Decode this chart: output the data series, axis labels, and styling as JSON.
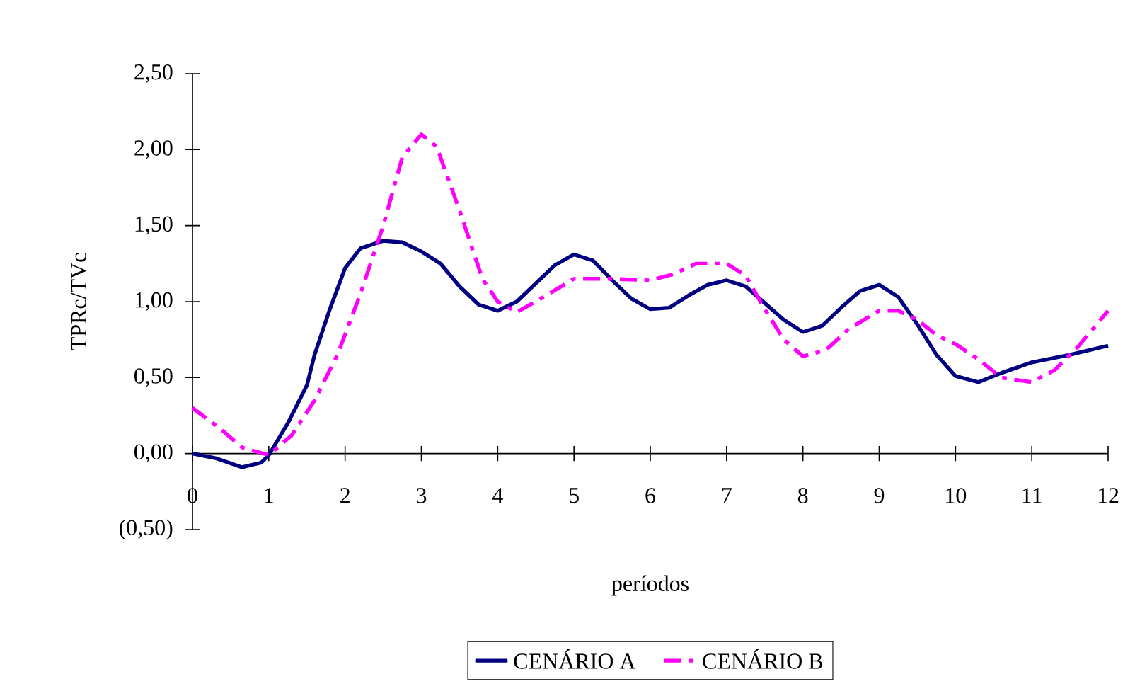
{
  "chart_data": {
    "type": "line",
    "xlabel": "períodos",
    "ylabel": "TPRc/TVc",
    "xlim": [
      0,
      12
    ],
    "xticks": [
      0,
      1,
      2,
      3,
      4,
      5,
      6,
      7,
      8,
      9,
      10,
      11,
      12
    ],
    "ylim": [
      -0.5,
      2.5
    ],
    "yticks": [
      {
        "value": -0.5,
        "label": "(0,50)"
      },
      {
        "value": 0,
        "label": "0,00"
      },
      {
        "value": 0.5,
        "label": "0,50"
      },
      {
        "value": 1,
        "label": "1,00"
      },
      {
        "value": 1.5,
        "label": "1,50"
      },
      {
        "value": 2,
        "label": "2,00"
      },
      {
        "value": 2.5,
        "label": "2,50"
      }
    ],
    "legend": "bottom",
    "grid": false,
    "marker": "none",
    "series": [
      {
        "name": "CENÁRIO A",
        "color": "#000080",
        "line_style": "solid",
        "x": [
          0,
          0.3,
          0.65,
          0.9,
          1.0,
          1.25,
          1.5,
          1.6,
          1.8,
          2.0,
          2.2,
          2.5,
          2.75,
          3.0,
          3.25,
          3.5,
          3.75,
          4.0,
          4.25,
          4.5,
          4.75,
          5.0,
          5.25,
          5.5,
          5.75,
          6.0,
          6.25,
          6.5,
          6.75,
          7.0,
          7.25,
          7.5,
          7.75,
          8.0,
          8.25,
          8.5,
          8.75,
          9.0,
          9.25,
          9.5,
          9.75,
          10.0,
          10.3,
          10.6,
          11.0,
          11.5,
          12.0
        ],
        "values": [
          0.0,
          -0.03,
          -0.09,
          -0.06,
          -0.01,
          0.2,
          0.45,
          0.65,
          0.95,
          1.22,
          1.35,
          1.4,
          1.39,
          1.33,
          1.25,
          1.1,
          0.98,
          0.94,
          1.0,
          1.12,
          1.24,
          1.31,
          1.27,
          1.14,
          1.02,
          0.95,
          0.96,
          1.04,
          1.11,
          1.14,
          1.1,
          0.99,
          0.88,
          0.8,
          0.84,
          0.96,
          1.07,
          1.11,
          1.03,
          0.85,
          0.65,
          0.51,
          0.47,
          0.53,
          0.6,
          0.65,
          0.71
        ]
      },
      {
        "name": "CENÁRIO B",
        "color": "#ff00ff",
        "line_style": "dashdot",
        "x": [
          0,
          0.35,
          0.65,
          1.0,
          1.3,
          1.6,
          1.9,
          2.2,
          2.5,
          2.75,
          3.0,
          3.2,
          3.5,
          3.8,
          4.0,
          4.25,
          4.6,
          5.0,
          5.5,
          6.0,
          6.3,
          6.6,
          7.0,
          7.25,
          7.5,
          7.75,
          8.0,
          8.3,
          8.6,
          9.0,
          9.25,
          9.5,
          9.75,
          10.0,
          10.3,
          10.6,
          11.0,
          11.3,
          11.6,
          12.0
        ],
        "values": [
          0.3,
          0.17,
          0.04,
          -0.01,
          0.12,
          0.35,
          0.65,
          1.05,
          1.5,
          1.95,
          2.1,
          2.02,
          1.6,
          1.15,
          1.0,
          0.93,
          1.03,
          1.15,
          1.15,
          1.14,
          1.18,
          1.25,
          1.25,
          1.17,
          0.95,
          0.75,
          0.64,
          0.68,
          0.82,
          0.94,
          0.94,
          0.88,
          0.78,
          0.72,
          0.62,
          0.5,
          0.47,
          0.55,
          0.7,
          0.94
        ]
      }
    ]
  }
}
